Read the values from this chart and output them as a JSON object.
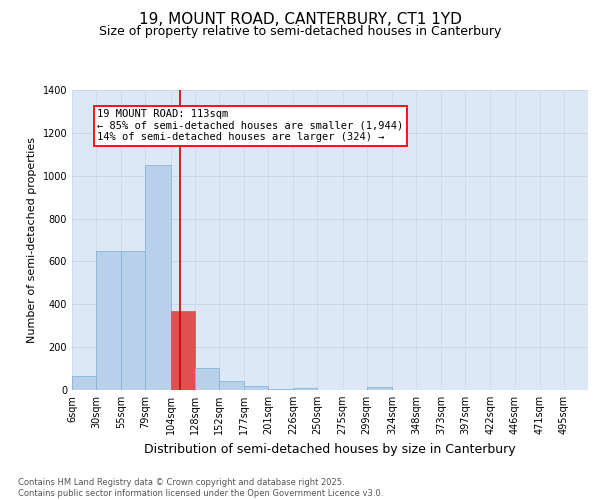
{
  "title": "19, MOUNT ROAD, CANTERBURY, CT1 1YD",
  "subtitle": "Size of property relative to semi-detached houses in Canterbury",
  "xlabel": "Distribution of semi-detached houses by size in Canterbury",
  "ylabel": "Number of semi-detached properties",
  "annotation_title": "19 MOUNT ROAD: 113sqm",
  "annotation_line1": "← 85% of semi-detached houses are smaller (1,944)",
  "annotation_line2": "14% of semi-detached houses are larger (324) →",
  "footer1": "Contains HM Land Registry data © Crown copyright and database right 2025.",
  "footer2": "Contains public sector information licensed under the Open Government Licence v3.0.",
  "bar_labels": [
    "6sqm",
    "30sqm",
    "55sqm",
    "79sqm",
    "104sqm",
    "128sqm",
    "152sqm",
    "177sqm",
    "201sqm",
    "226sqm",
    "250sqm",
    "275sqm",
    "299sqm",
    "324sqm",
    "348sqm",
    "373sqm",
    "397sqm",
    "422sqm",
    "446sqm",
    "471sqm",
    "495sqm"
  ],
  "bar_values": [
    65,
    650,
    650,
    1050,
    370,
    105,
    40,
    20,
    5,
    10,
    0,
    0,
    15,
    0,
    0,
    0,
    0,
    0,
    0,
    0,
    0
  ],
  "bin_edges": [
    6,
    30,
    55,
    79,
    104,
    128,
    152,
    177,
    201,
    226,
    250,
    275,
    299,
    324,
    348,
    373,
    397,
    422,
    446,
    471,
    495,
    519
  ],
  "bar_color": "#b8d0ea",
  "bar_edge_color": "#7aafd4",
  "highlight_bar_index": 4,
  "highlight_color": "#e05050",
  "vline_color": "#cc0000",
  "vline_x": 113,
  "ylim": [
    0,
    1400
  ],
  "yticks": [
    0,
    200,
    400,
    600,
    800,
    1000,
    1200,
    1400
  ],
  "grid_color": "#c8d8e8",
  "bg_color": "#dce8f5",
  "title_fontsize": 11,
  "subtitle_fontsize": 9,
  "ylabel_fontsize": 8,
  "xlabel_fontsize": 9,
  "tick_fontsize": 7,
  "footer_fontsize": 6,
  "annot_fontsize": 7.5
}
